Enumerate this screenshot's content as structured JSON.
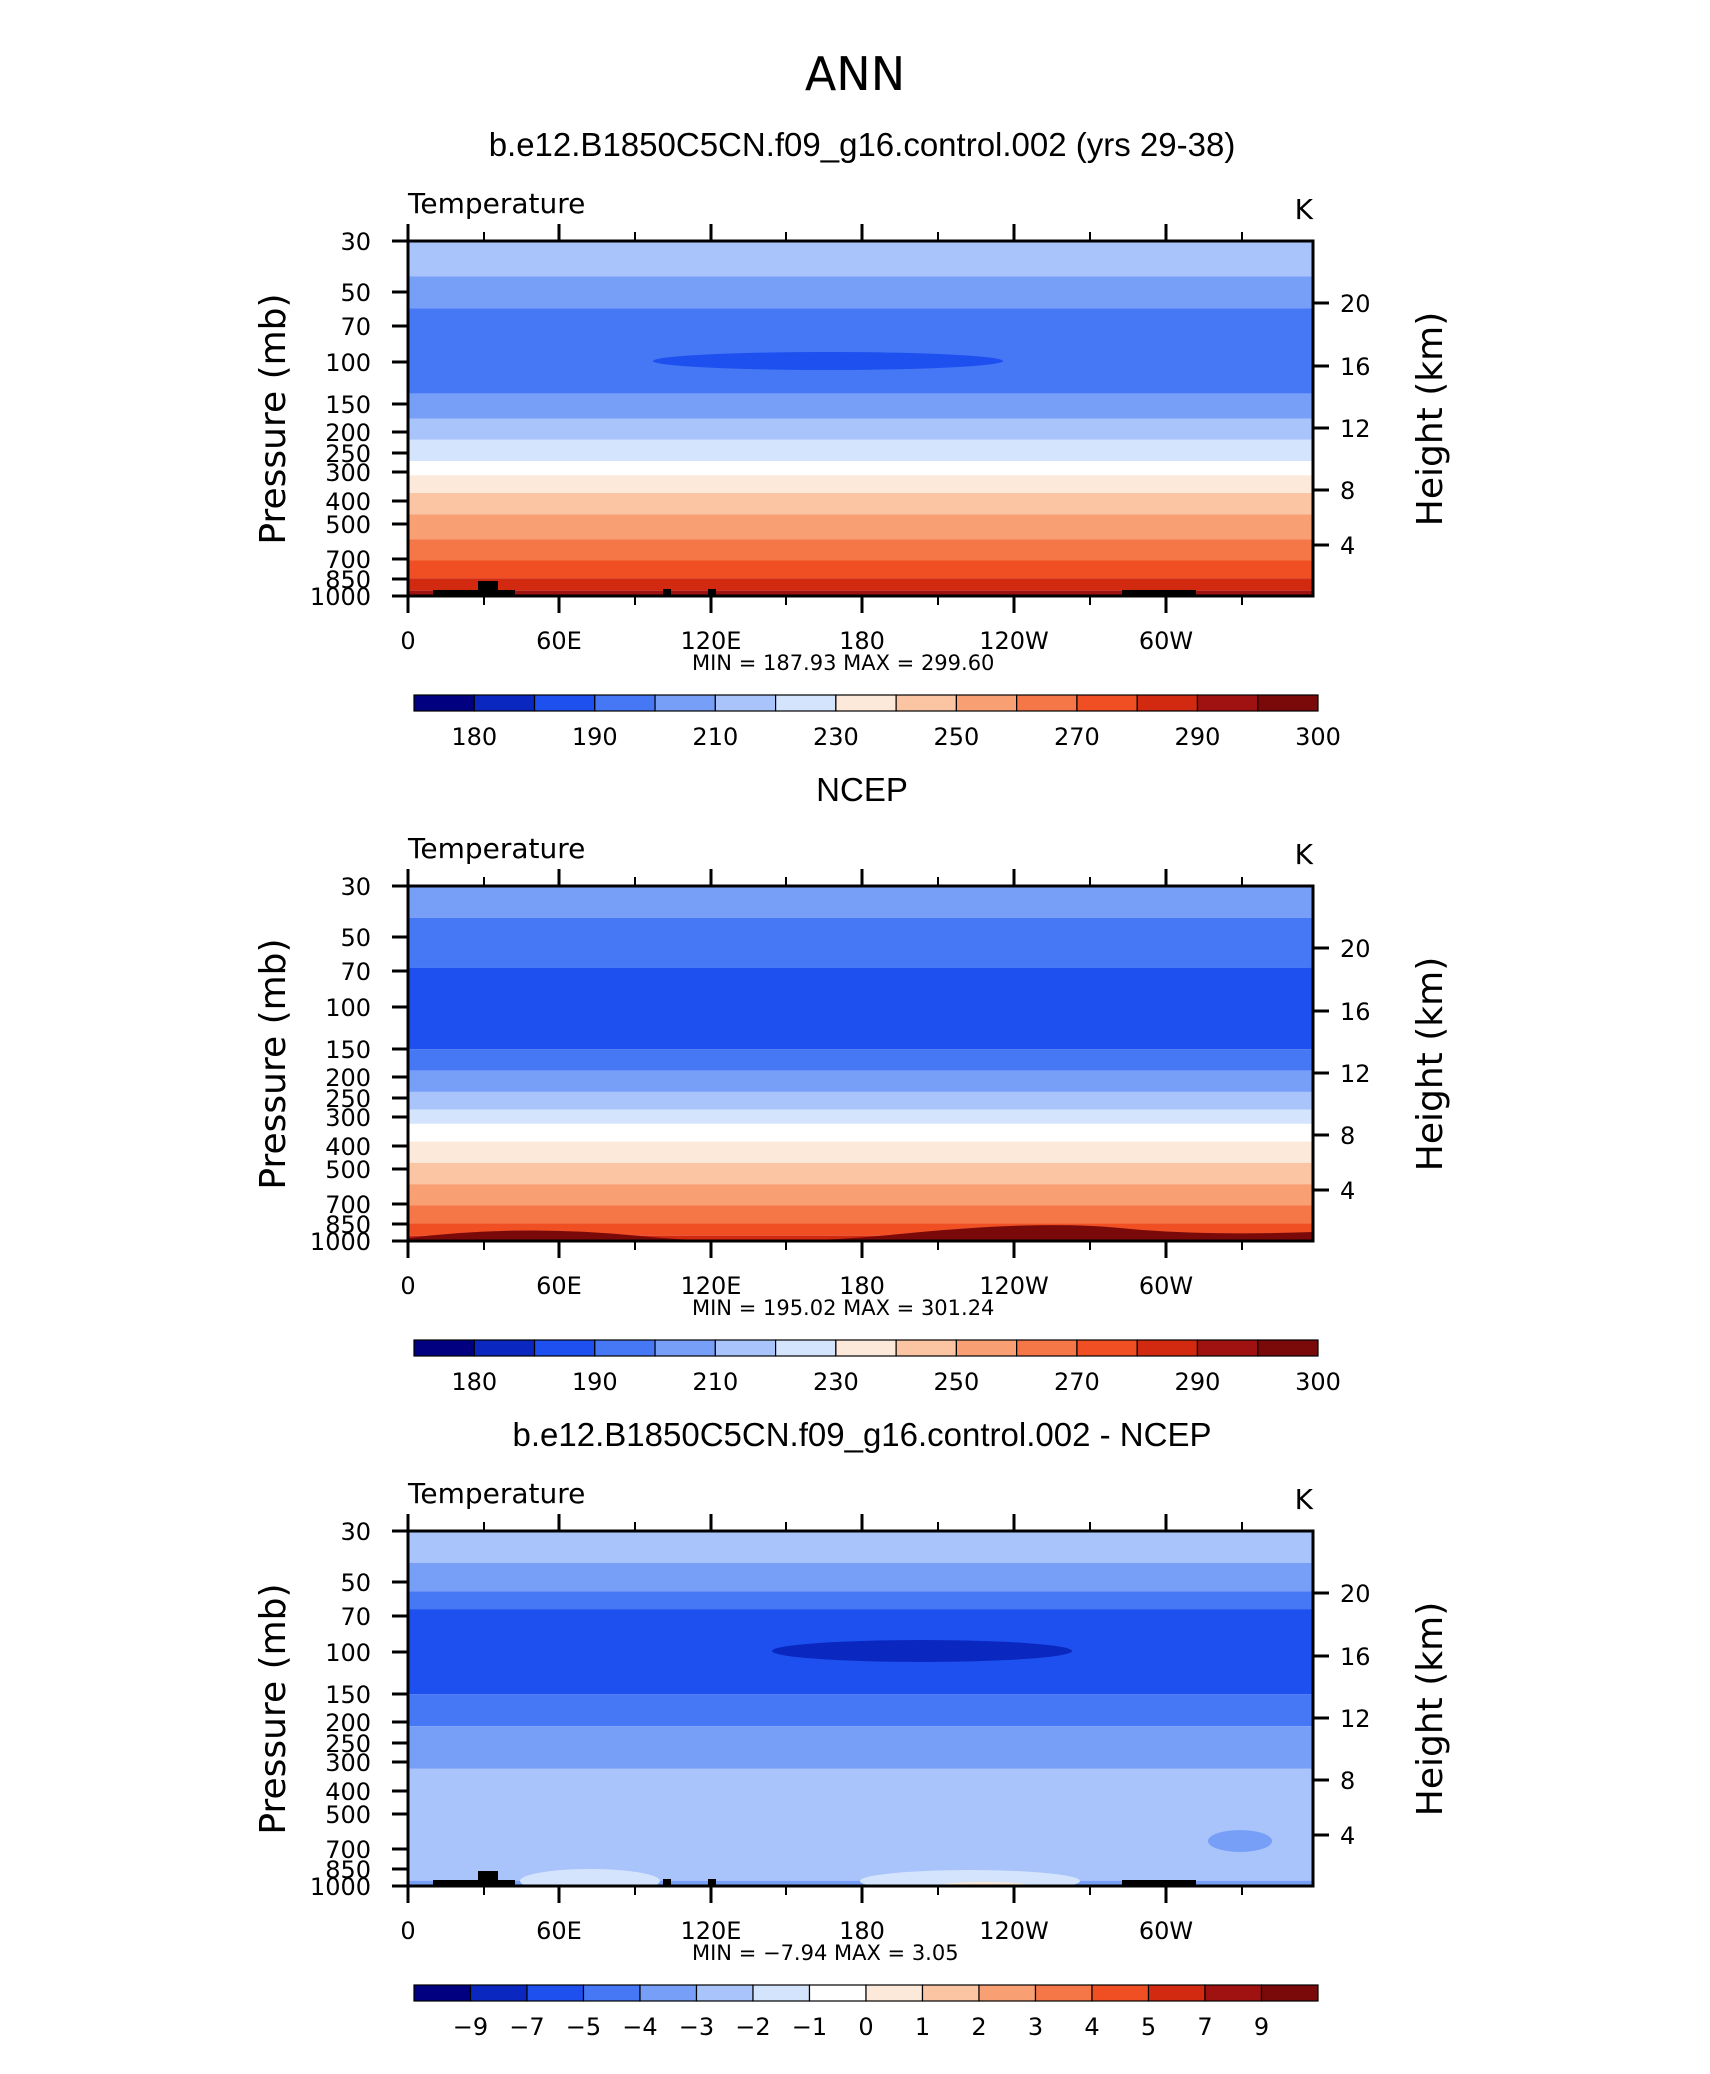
{
  "figure_title": "ANN",
  "colors": {
    "frame": "#000000",
    "topography": "#000000",
    "cold_ramp": [
      "#000080",
      "#0a28c0",
      "#1e50f0",
      "#4678f5",
      "#789ff8",
      "#a9c4fb",
      "#d4e4fc"
    ],
    "neutral": "#ffffff",
    "warm_ramp": [
      "#fde9d9",
      "#fbc4a3",
      "#f99f74",
      "#f57748",
      "#ef4f23",
      "#d22a10",
      "#a01212",
      "#7a0a0a"
    ]
  },
  "chart_data": [
    {
      "type": "heatmap",
      "panel_title": "b.e12.B1850C5CN.f09_g16.control.002 (yrs 29-38)",
      "left_label": "Temperature",
      "units": "K",
      "ylabel": "Pressure  (mb)",
      "ylabel_right": "Height  (km)",
      "x_ticks": [
        "0",
        "60E",
        "120E",
        "180",
        "120W",
        "60W"
      ],
      "y_ticks": [
        "30",
        "50",
        "70",
        "100",
        "150",
        "200",
        "250",
        "300",
        "400",
        "500",
        "700",
        "850",
        "1000"
      ],
      "y_ticks_right": [
        "20",
        "16",
        "12",
        "8",
        "4"
      ],
      "stats": {
        "min": "187.93",
        "max": "299.60"
      },
      "stats_text": "MIN =  187.93   MAX =  299.60",
      "colorbar_labels": [
        "180",
        "190",
        "210",
        "230",
        "250",
        "270",
        "290",
        "300"
      ],
      "grid": false
    },
    {
      "type": "heatmap",
      "panel_title": "NCEP",
      "left_label": "Temperature",
      "units": "K",
      "ylabel": "Pressure  (mb)",
      "ylabel_right": "Height  (km)",
      "x_ticks": [
        "0",
        "60E",
        "120E",
        "180",
        "120W",
        "60W"
      ],
      "y_ticks": [
        "30",
        "50",
        "70",
        "100",
        "150",
        "200",
        "250",
        "300",
        "400",
        "500",
        "700",
        "850",
        "1000"
      ],
      "y_ticks_right": [
        "20",
        "16",
        "12",
        "8",
        "4"
      ],
      "stats": {
        "min": "195.02",
        "max": "301.24"
      },
      "stats_text": "MIN =  195.02   MAX =  301.24",
      "colorbar_labels": [
        "180",
        "190",
        "210",
        "230",
        "250",
        "270",
        "290",
        "300"
      ],
      "grid": false
    },
    {
      "type": "heatmap",
      "panel_title": "b.e12.B1850C5CN.f09_g16.control.002 - NCEP",
      "left_label": "Temperature",
      "units": "K",
      "ylabel": "Pressure  (mb)",
      "ylabel_right": "Height  (km)",
      "x_ticks": [
        "0",
        "60E",
        "120E",
        "180",
        "120W",
        "60W"
      ],
      "y_ticks": [
        "30",
        "50",
        "70",
        "100",
        "150",
        "200",
        "250",
        "300",
        "400",
        "500",
        "700",
        "850",
        "1000"
      ],
      "y_ticks_right": [
        "20",
        "16",
        "12",
        "8",
        "4"
      ],
      "stats": {
        "min": "-7.94",
        "max": "3.05"
      },
      "stats_text": "MIN =   −7.94   MAX =     3.05",
      "colorbar_labels": [
        "−9",
        "−7",
        "−5",
        "−4",
        "−3",
        "−2",
        "−1",
        "0",
        "1",
        "2",
        "3",
        "4",
        "5",
        "7",
        "9"
      ],
      "grid": false
    }
  ]
}
